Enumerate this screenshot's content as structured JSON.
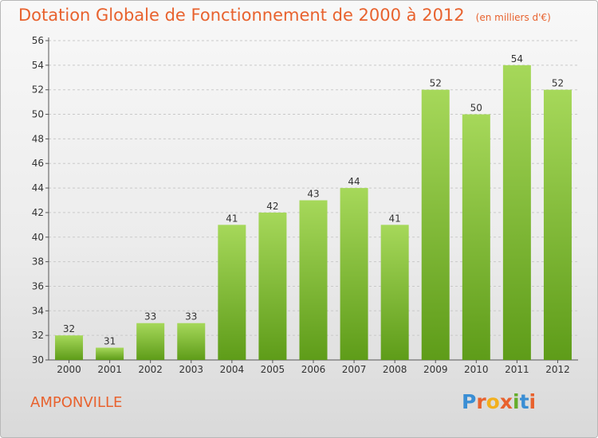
{
  "title": "Dotation Globale de Fonctionnement de 2000 à 2012",
  "subtitle": "(en milliers d'€)",
  "commune": "AMPONVILLE",
  "logo": {
    "letters": [
      "P",
      "r",
      "o",
      "x",
      "i",
      "t",
      "i"
    ],
    "colors": [
      "#3a8ed4",
      "#e8622e",
      "#f2b01e",
      "#e8622e",
      "#65ad2b",
      "#3a8ed4",
      "#e8622e"
    ]
  },
  "colors": {
    "accent": "#e8622e",
    "bar_top": "#a6d85a",
    "bar_bottom": "#5e9c19"
  },
  "chart_data": {
    "type": "bar",
    "categories": [
      "2000",
      "2001",
      "2002",
      "2003",
      "2004",
      "2005",
      "2006",
      "2007",
      "2008",
      "2009",
      "2010",
      "2011",
      "2012"
    ],
    "values": [
      32,
      31,
      33,
      33,
      41,
      42,
      43,
      44,
      41,
      52,
      50,
      54,
      52
    ],
    "ylim": [
      30,
      56
    ],
    "yticks": [
      30,
      32,
      34,
      36,
      38,
      40,
      42,
      44,
      46,
      48,
      50,
      52,
      54,
      56
    ],
    "grid": true
  }
}
